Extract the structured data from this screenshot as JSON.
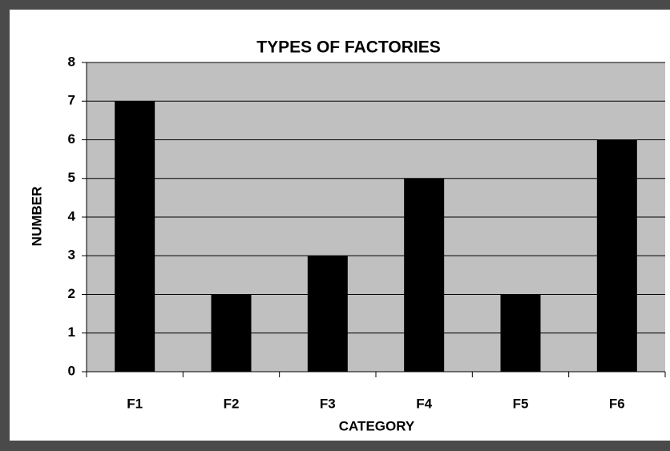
{
  "chart_data": {
    "type": "bar",
    "title": "TYPES OF FACTORIES",
    "x_label": "CATEGORY",
    "y_label": "NUMBER",
    "categories": [
      "F1",
      "F2",
      "F3",
      "F4",
      "F5",
      "F6"
    ],
    "values": [
      7,
      2,
      3,
      5,
      2,
      6
    ],
    "color": "#000000",
    "ylim": [
      0,
      8
    ],
    "yticks": [
      0,
      1,
      2,
      3,
      4,
      5,
      6,
      7,
      8
    ],
    "grid": true
  }
}
